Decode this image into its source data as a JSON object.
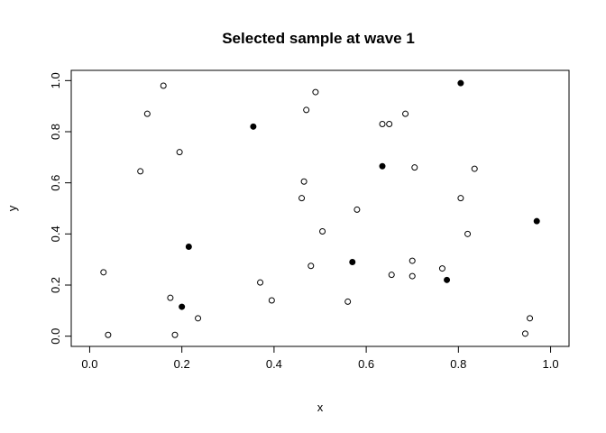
{
  "chart_data": {
    "type": "scatter",
    "title": "Selected sample at wave 1",
    "xlabel": "x",
    "ylabel": "y",
    "xlim": [
      -0.04,
      1.04
    ],
    "ylim": [
      -0.04,
      1.04
    ],
    "grid": false,
    "x_ticks": [
      "0.0",
      "0.2",
      "0.4",
      "0.6",
      "0.8",
      "1.0"
    ],
    "y_ticks": [
      "0.0",
      "0.2",
      "0.4",
      "0.6",
      "0.8",
      "1.0"
    ],
    "series": [
      {
        "marker": "open-circle",
        "color": "#000000",
        "points": [
          [
            0.03,
            0.25
          ],
          [
            0.04,
            0.005
          ],
          [
            0.11,
            0.645
          ],
          [
            0.125,
            0.87
          ],
          [
            0.16,
            0.98
          ],
          [
            0.175,
            0.15
          ],
          [
            0.185,
            0.005
          ],
          [
            0.195,
            0.72
          ],
          [
            0.235,
            0.07
          ],
          [
            0.37,
            0.21
          ],
          [
            0.395,
            0.14
          ],
          [
            0.46,
            0.54
          ],
          [
            0.465,
            0.605
          ],
          [
            0.47,
            0.885
          ],
          [
            0.48,
            0.275
          ],
          [
            0.49,
            0.955
          ],
          [
            0.505,
            0.41
          ],
          [
            0.56,
            0.135
          ],
          [
            0.58,
            0.495
          ],
          [
            0.635,
            0.83
          ],
          [
            0.65,
            0.83
          ],
          [
            0.655,
            0.24
          ],
          [
            0.685,
            0.87
          ],
          [
            0.7,
            0.295
          ],
          [
            0.7,
            0.235
          ],
          [
            0.705,
            0.66
          ],
          [
            0.765,
            0.265
          ],
          [
            0.805,
            0.54
          ],
          [
            0.82,
            0.4
          ],
          [
            0.835,
            0.655
          ],
          [
            0.945,
            0.01
          ],
          [
            0.955,
            0.07
          ]
        ]
      },
      {
        "marker": "filled-circle",
        "color": "#000000",
        "points": [
          [
            0.2,
            0.115
          ],
          [
            0.215,
            0.35
          ],
          [
            0.355,
            0.82
          ],
          [
            0.57,
            0.29
          ],
          [
            0.635,
            0.665
          ],
          [
            0.775,
            0.22
          ],
          [
            0.805,
            0.99
          ],
          [
            0.97,
            0.45
          ]
        ]
      }
    ]
  }
}
